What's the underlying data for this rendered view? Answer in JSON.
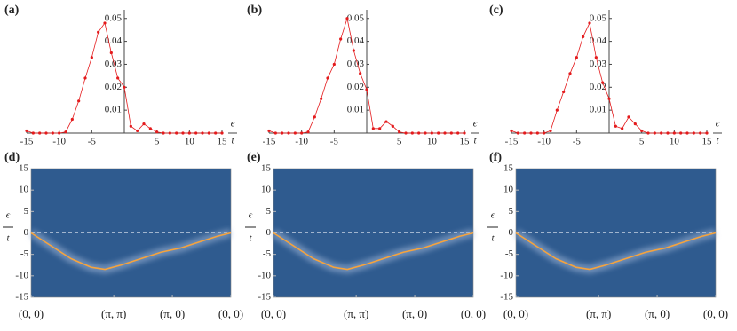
{
  "chart_data": [
    {
      "type": "scatter",
      "title": "(a)",
      "xlabel_top": "ϵ",
      "xlabel_bottom": "t",
      "color": "#e41a1c",
      "x": [
        -15,
        -14,
        -13,
        -12,
        -11,
        -10,
        -9,
        -8,
        -7,
        -6,
        -5,
        -4,
        -3,
        -2,
        -1,
        0,
        1,
        2,
        3,
        4,
        5,
        6,
        7,
        8,
        9,
        10,
        11,
        12,
        13,
        14,
        15
      ],
      "values": [
        0.001,
        0,
        0,
        0,
        0,
        0,
        0.0005,
        0.006,
        0.014,
        0.024,
        0.033,
        0.044,
        0.048,
        0.035,
        0.024,
        0.02,
        0.003,
        0.001,
        0.004,
        0.002,
        0.0005,
        0,
        0,
        0,
        0,
        0,
        0,
        0,
        0,
        0,
        0
      ],
      "xlim": [
        -15,
        15
      ],
      "xticks": [
        -15,
        -10,
        -5,
        5,
        10,
        15
      ],
      "ylim": [
        0,
        0.053
      ],
      "yticks": [
        0.01,
        0.02,
        0.03,
        0.04,
        0.05
      ]
    },
    {
      "type": "scatter",
      "title": "(b)",
      "xlabel_top": "ϵ",
      "xlabel_bottom": "t",
      "color": "#e41a1c",
      "x": [
        -15,
        -14,
        -13,
        -12,
        -11,
        -10,
        -9,
        -8,
        -7,
        -6,
        -5,
        -4,
        -3,
        -2,
        -1,
        0,
        1,
        2,
        3,
        4,
        5,
        6,
        7,
        8,
        9,
        10,
        11,
        12,
        13,
        14,
        15
      ],
      "values": [
        0.001,
        0,
        0,
        0,
        0,
        0,
        0.0005,
        0.007,
        0.015,
        0.024,
        0.03,
        0.041,
        0.05,
        0.036,
        0.026,
        0.019,
        0.002,
        0.002,
        0.005,
        0.003,
        0.0005,
        0,
        0,
        0,
        0,
        0,
        0,
        0,
        0,
        0,
        0
      ],
      "xlim": [
        -15,
        15
      ],
      "xticks": [
        -15,
        -10,
        -5,
        5,
        10,
        15
      ],
      "ylim": [
        0,
        0.053
      ],
      "yticks": [
        0.01,
        0.02,
        0.03,
        0.04,
        0.05
      ]
    },
    {
      "type": "scatter",
      "title": "(c)",
      "xlabel_top": "ϵ",
      "xlabel_bottom": "t",
      "color": "#e41a1c",
      "x": [
        -15,
        -14,
        -13,
        -12,
        -11,
        -10,
        -9,
        -8,
        -7,
        -6,
        -5,
        -4,
        -3,
        -2,
        -1,
        0,
        1,
        2,
        3,
        4,
        5,
        6,
        7,
        8,
        9,
        10,
        11,
        12,
        13,
        14,
        15
      ],
      "values": [
        0.001,
        0,
        0,
        0,
        0,
        0,
        0.001,
        0.01,
        0.018,
        0.026,
        0.033,
        0.042,
        0.048,
        0.033,
        0.022,
        0.015,
        0.003,
        0.002,
        0.007,
        0.004,
        0.001,
        0,
        0,
        0,
        0,
        0,
        0,
        0,
        0,
        0,
        0
      ],
      "xlim": [
        -15,
        15
      ],
      "xticks": [
        -15,
        -10,
        -5,
        5,
        10,
        15
      ],
      "ylim": [
        0,
        0.053
      ],
      "yticks": [
        0.01,
        0.02,
        0.03,
        0.04,
        0.05
      ]
    },
    {
      "type": "line",
      "title": "(d)",
      "ylabel_top": "ϵ",
      "ylabel_bottom": "t",
      "background": "#2f5b8f",
      "color": "#f6a33c",
      "hline": 0,
      "x": [
        0,
        0.1,
        0.2,
        0.3,
        0.37,
        0.45,
        0.55,
        0.65,
        0.75,
        0.85,
        0.93,
        1
      ],
      "values": [
        0,
        -3,
        -6,
        -8,
        -8.5,
        -7.5,
        -6,
        -4.5,
        -3.5,
        -2,
        -0.8,
        0
      ],
      "xlim": [
        0,
        1
      ],
      "xticks": [
        {
          "value": 0,
          "label": "(0, 0)"
        },
        {
          "value": 0.414,
          "label": "(π, π)"
        },
        {
          "value": 0.707,
          "label": "(π, 0)"
        },
        {
          "value": 1,
          "label": "(0, 0)"
        }
      ],
      "ylim": [
        -15,
        15
      ],
      "yticks": [
        -15,
        -10,
        -5,
        0,
        5,
        10,
        15
      ]
    },
    {
      "type": "line",
      "title": "(e)",
      "ylabel_top": "ϵ",
      "ylabel_bottom": "t",
      "background": "#2f5b8f",
      "color": "#f6a33c",
      "hline": 0,
      "x": [
        0,
        0.1,
        0.2,
        0.3,
        0.37,
        0.45,
        0.55,
        0.65,
        0.75,
        0.85,
        0.93,
        1
      ],
      "values": [
        0,
        -3,
        -6,
        -8,
        -8.5,
        -7.5,
        -6,
        -4.5,
        -3.5,
        -2,
        -0.8,
        0
      ],
      "xlim": [
        0,
        1
      ],
      "xticks": [
        {
          "value": 0,
          "label": "(0, 0)"
        },
        {
          "value": 0.414,
          "label": "(π, π)"
        },
        {
          "value": 0.707,
          "label": "(π, 0)"
        },
        {
          "value": 1,
          "label": "(0, 0)"
        }
      ],
      "ylim": [
        -15,
        15
      ],
      "yticks": [
        -15,
        -10,
        -5,
        0,
        5,
        10,
        15
      ]
    },
    {
      "type": "line",
      "title": "(f)",
      "ylabel_top": "ϵ",
      "ylabel_bottom": "t",
      "background": "#2f5b8f",
      "color": "#f6a33c",
      "hline": 0,
      "x": [
        0,
        0.1,
        0.2,
        0.3,
        0.37,
        0.45,
        0.55,
        0.65,
        0.75,
        0.85,
        0.93,
        1
      ],
      "values": [
        0,
        -3,
        -6,
        -8,
        -8.5,
        -7.5,
        -6,
        -4.5,
        -3.5,
        -2,
        -0.8,
        0
      ],
      "xlim": [
        0,
        1
      ],
      "xticks": [
        {
          "value": 0,
          "label": "(0, 0)"
        },
        {
          "value": 0.414,
          "label": "(π, π)"
        },
        {
          "value": 0.707,
          "label": "(π, 0)"
        },
        {
          "value": 1,
          "label": "(0, 0)"
        }
      ],
      "ylim": [
        -15,
        15
      ],
      "yticks": [
        -15,
        -10,
        -5,
        0,
        5,
        10,
        15
      ]
    }
  ]
}
